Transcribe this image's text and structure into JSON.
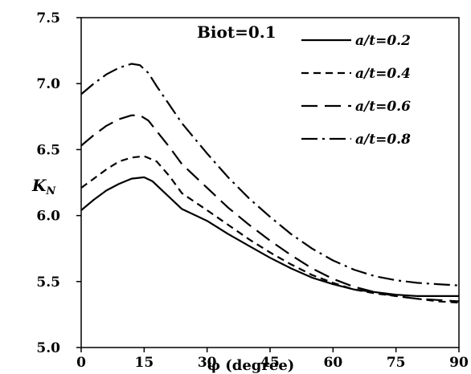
{
  "chart_data": {
    "type": "line",
    "annotation": "Biot=0.1",
    "xlabel": "φ (degree)",
    "ylabel_main": "K",
    "ylabel_sub": "N",
    "xlim": [
      0,
      90
    ],
    "ylim": [
      5.0,
      7.5
    ],
    "xticks": [
      "0",
      "15",
      "30",
      "45",
      "60",
      "75",
      "90"
    ],
    "yticks": [
      "5.0",
      "5.5",
      "6.0",
      "6.5",
      "7.0",
      "7.5"
    ],
    "grid": false,
    "legend_position": "top-right",
    "series": [
      {
        "name": "a/t=0.2",
        "dash": "solid",
        "x": [
          0,
          3,
          6,
          9,
          12,
          15,
          17,
          20,
          24,
          30,
          35,
          40,
          45,
          50,
          55,
          60,
          65,
          70,
          75,
          80,
          85,
          90
        ],
        "y": [
          6.04,
          6.12,
          6.19,
          6.24,
          6.28,
          6.29,
          6.26,
          6.17,
          6.05,
          5.96,
          5.86,
          5.77,
          5.68,
          5.6,
          5.53,
          5.48,
          5.44,
          5.42,
          5.4,
          5.39,
          5.39,
          5.39
        ]
      },
      {
        "name": "a/t=0.4",
        "dash": "dash",
        "x": [
          0,
          3,
          6,
          9,
          12,
          15,
          18,
          21,
          24,
          30,
          35,
          40,
          45,
          50,
          55,
          60,
          65,
          70,
          75,
          80,
          85,
          90
        ],
        "y": [
          6.21,
          6.28,
          6.35,
          6.41,
          6.44,
          6.45,
          6.41,
          6.3,
          6.17,
          6.04,
          5.93,
          5.82,
          5.72,
          5.63,
          5.55,
          5.49,
          5.44,
          5.41,
          5.39,
          5.37,
          5.35,
          5.34
        ]
      },
      {
        "name": "a/t=0.6",
        "dash": "longdash",
        "x": [
          0,
          3,
          6,
          9,
          12,
          14,
          16,
          18,
          21,
          24,
          30,
          35,
          40,
          45,
          50,
          55,
          60,
          65,
          70,
          75,
          80,
          85,
          90
        ],
        "y": [
          6.53,
          6.61,
          6.68,
          6.73,
          6.76,
          6.76,
          6.72,
          6.64,
          6.52,
          6.39,
          6.21,
          6.06,
          5.93,
          5.81,
          5.7,
          5.6,
          5.52,
          5.46,
          5.42,
          5.39,
          5.37,
          5.36,
          5.35
        ]
      },
      {
        "name": "a/t=0.8",
        "dash": "dashdot",
        "x": [
          0,
          3,
          6,
          9,
          12,
          14,
          16,
          18,
          21,
          24,
          30,
          35,
          40,
          45,
          50,
          55,
          60,
          65,
          70,
          75,
          80,
          85,
          90
        ],
        "y": [
          6.92,
          7.0,
          7.07,
          7.12,
          7.15,
          7.14,
          7.08,
          6.98,
          6.84,
          6.7,
          6.47,
          6.29,
          6.13,
          5.99,
          5.86,
          5.75,
          5.66,
          5.59,
          5.54,
          5.51,
          5.49,
          5.48,
          5.47
        ]
      }
    ]
  },
  "colors": {
    "line": "#000000",
    "background": "#ffffff"
  }
}
